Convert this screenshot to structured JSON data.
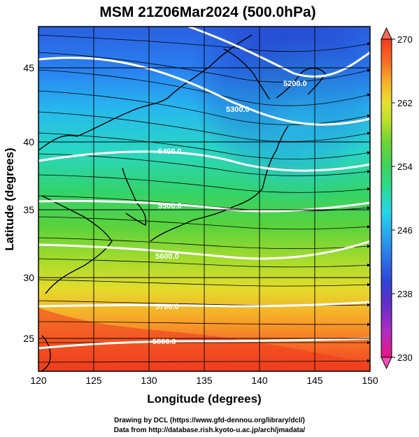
{
  "title": "MSM 21Z06Mar2024 (500.0hPa)",
  "x_axis": {
    "label": "Longitude (degrees)",
    "ticks": [
      "120",
      "125",
      "130",
      "135",
      "140",
      "145",
      "150"
    ],
    "range": [
      120,
      150
    ]
  },
  "y_axis": {
    "label": "Latitude  (degrees)",
    "ticks": [
      "25",
      "30",
      "35",
      "40",
      "45"
    ],
    "range": [
      22.4,
      47.6
    ]
  },
  "colorbar": {
    "ticks": [
      "270",
      "262",
      "254",
      "246",
      "238",
      "230"
    ],
    "range": [
      230,
      270
    ],
    "colors": [
      "#e6157e",
      "#b42bc6",
      "#6a2ec9",
      "#2f46d6",
      "#2a6de8",
      "#27a8f0",
      "#26d7e6",
      "#2be0a0",
      "#3ed35a",
      "#6fd532",
      "#a8de2a",
      "#d8e82c",
      "#f7d52c",
      "#f9a62a",
      "#f86b26",
      "#f23a1f"
    ]
  },
  "contours": [
    {
      "label": "5200.0"
    },
    {
      "label": "5300.0"
    },
    {
      "label": "5400.0"
    },
    {
      "label": "5500.0"
    },
    {
      "label": "5600.0"
    },
    {
      "label": "5700.0"
    },
    {
      "label": "5800.0"
    }
  ],
  "credits": {
    "line1": "Drawing by DCL (https://www.gfd-dennou.org/library/dcl/)",
    "line2": "Data from http://database.rish.kyoto-u.ac.jp/arch/jmadata/"
  }
}
